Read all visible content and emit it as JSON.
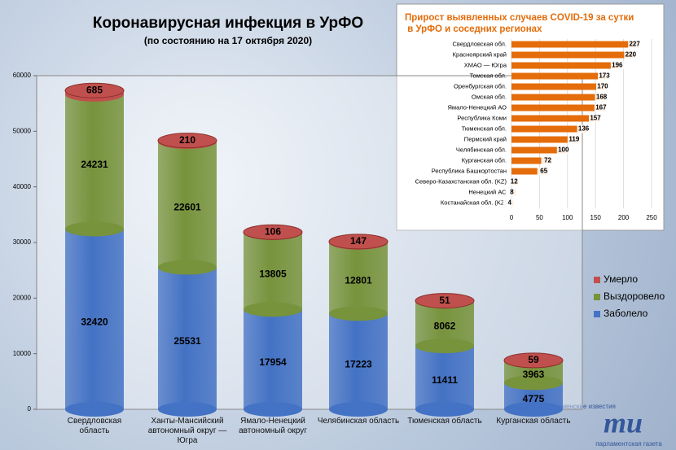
{
  "chart_data": [
    {
      "type": "stacked-cylinder",
      "title": "Коронавирусная инфекция в УрФО",
      "subtitle": "(по состоянию на 17 октября 2020)",
      "categories": [
        "Свердловская область",
        "Ханты-Мансийский автономный округ — Югра",
        "Ямало-Ненецкий автономный округ",
        "Челябинская область",
        "Тюменская область",
        "Курганская область"
      ],
      "series": [
        {
          "name": "Заболело",
          "color": "#4472c4",
          "values": [
            32420,
            25531,
            17954,
            17223,
            11411,
            4775
          ]
        },
        {
          "name": "Выздоровело",
          "color": "#77933c",
          "values": [
            24231,
            22601,
            13805,
            12801,
            8062,
            3963
          ]
        },
        {
          "name": "Умерло",
          "color": "#c0504d",
          "values": [
            685,
            210,
            106,
            147,
            51,
            59
          ]
        }
      ],
      "ylim": [
        0,
        60000
      ],
      "yticks": [
        0,
        10000,
        20000,
        30000,
        40000,
        50000,
        60000
      ],
      "legend": "right"
    },
    {
      "type": "hbar",
      "title": "Прирост выявленных случаев COVID-19 за сутки в УрФО и соседних регионах",
      "categories": [
        "Свердловская обл.",
        "Красноярский край",
        "ХМАО — Югра",
        "Томская обл.",
        "Оренбургская обл.",
        "Омская обл.",
        "Ямало-Ненецкий АО",
        "Республика Коми",
        "Тюменская обл.",
        "Пермский край",
        "Челябинская обл.",
        "Курганская обл.",
        "Республика Башкортостан",
        "Северо-Казахстанская обл. (KZ)",
        "Ненецкий АО",
        "Костанайская обл. (KZ)"
      ],
      "values": [
        227,
        220,
        196,
        173,
        170,
        168,
        167,
        157,
        136,
        119,
        100,
        72,
        65,
        12,
        8,
        4
      ],
      "color": "#e46c0a",
      "xlim": [
        0,
        250
      ],
      "xticks": [
        0,
        50,
        100,
        150,
        200,
        250
      ]
    }
  ],
  "logo": {
    "top": "тюменские известия",
    "mark": "ти",
    "bottom": "парламентская газета"
  }
}
